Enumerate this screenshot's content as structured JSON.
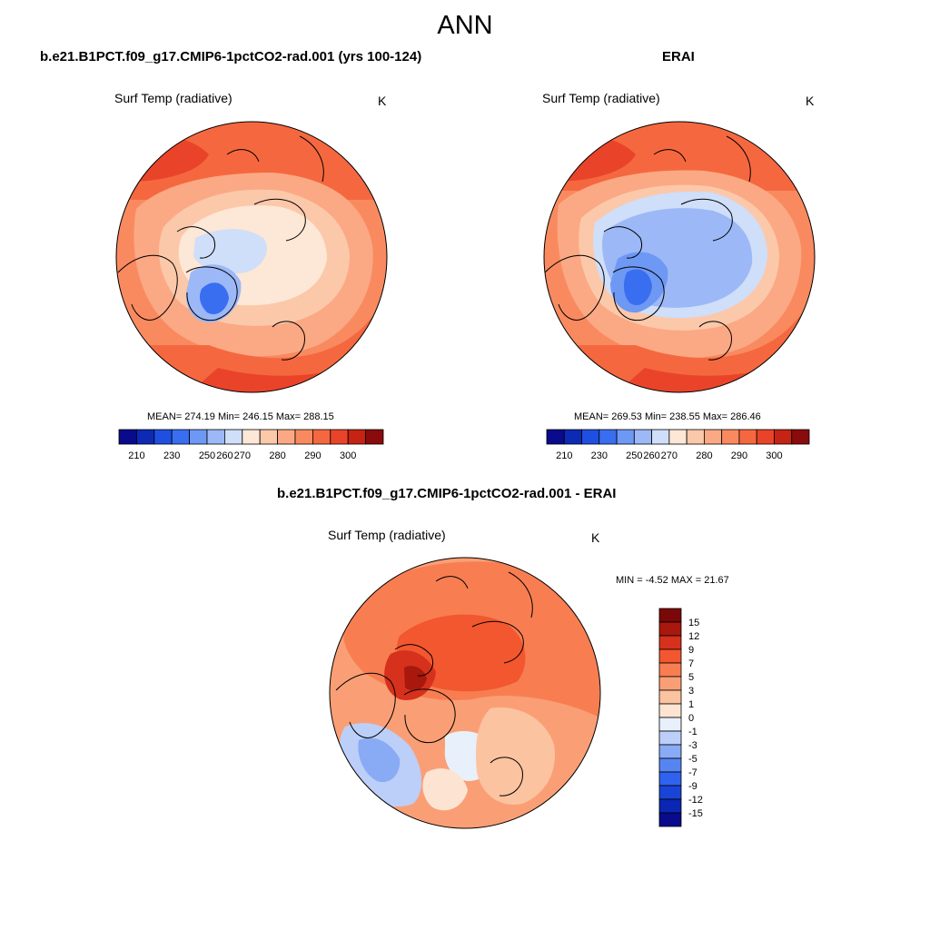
{
  "figure": {
    "title": "ANN",
    "colors": {
      "abs_scale": [
        "#0a0a8c",
        "#0d2ab5",
        "#1f4fe0",
        "#3a6ef0",
        "#6d98f4",
        "#9cb8f6",
        "#cfdef9",
        "#fde7d6",
        "#fcc8aa",
        "#fba984",
        "#f98a60",
        "#f5683f",
        "#e9442a",
        "#c52313",
        "#8a0b0b"
      ],
      "diff_scale": [
        "#0a0a8c",
        "#0a26b3",
        "#1a44d6",
        "#2f62ee",
        "#5585f2",
        "#89aaf5",
        "#bccff8",
        "#e8f0fb",
        "#fde4d2",
        "#fcc3a1",
        "#fa9f75",
        "#f87e52",
        "#f2572f",
        "#d5311d",
        "#a8180c",
        "#7b0808"
      ]
    }
  },
  "panels": [
    {
      "title": "b.e21.B1PCT.f09_g17.CMIP6-1pctCO2-rad.001 (yrs 100-124)",
      "variable": "Surf Temp (radiative)",
      "units": "K",
      "stats": "MEAN= 274.19  Min= 246.15  Max= 288.15",
      "ticks": [
        "210",
        "230",
        "250",
        "260",
        "270",
        "280",
        "290",
        "300"
      ]
    },
    {
      "title": "ERAI",
      "variable": "Surf Temp (radiative)",
      "units": "K",
      "stats": "MEAN= 269.53  Min= 238.55  Max= 286.46",
      "ticks": [
        "210",
        "230",
        "250",
        "260",
        "270",
        "280",
        "290",
        "300"
      ]
    },
    {
      "title": "b.e21.B1PCT.f09_g17.CMIP6-1pctCO2-rad.001 - ERAI",
      "variable": "Surf Temp (radiative)",
      "units": "K",
      "stats": "MIN =  -4.52 MAX =  21.67",
      "ticks": [
        "15",
        "12",
        "9",
        "7",
        "5",
        "3",
        "1",
        "0",
        "-1",
        "-3",
        "-5",
        "-7",
        "-9",
        "-12",
        "-15"
      ]
    }
  ]
}
